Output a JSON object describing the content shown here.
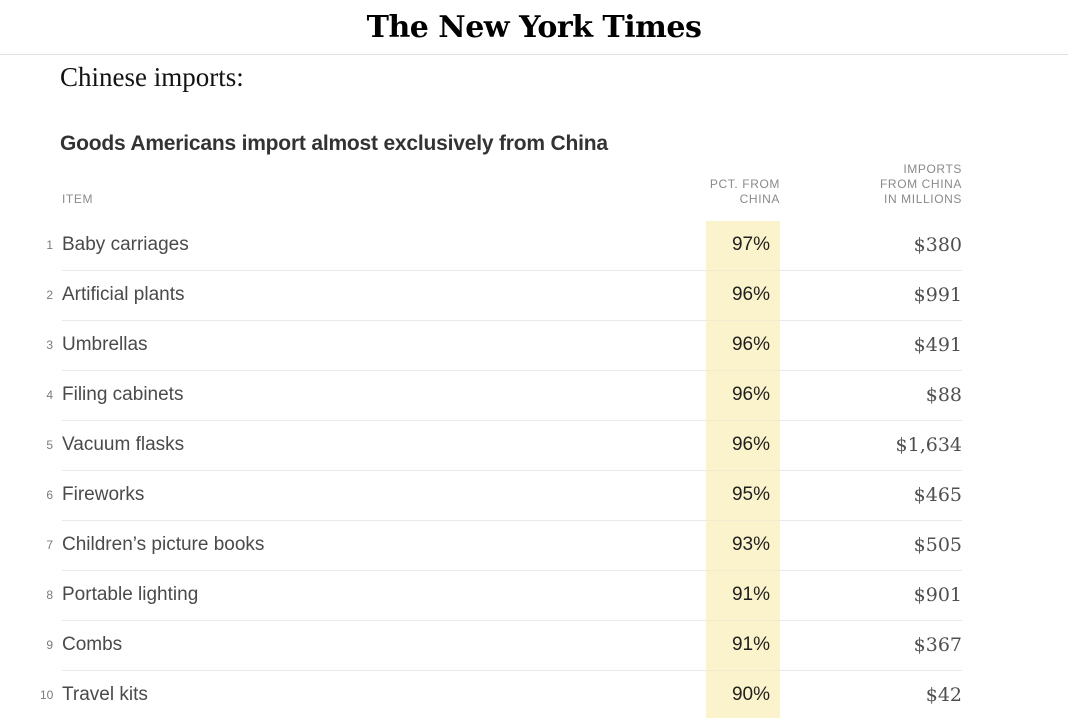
{
  "masthead": {
    "logo": "The New York Times"
  },
  "kicker": "Chinese imports:",
  "colors": {
    "highlight": "#fbf3cc",
    "row_border": "#e9e9e9",
    "masthead_border": "#e2e2e2"
  },
  "table": {
    "title": "Goods Americans import almost exclusively from China",
    "columns": {
      "item": "ITEM",
      "pct": "PCT. FROM\nCHINA",
      "value": "IMPORTS\nFROM CHINA\nIN MILLIONS"
    },
    "rows": [
      {
        "rank": "1",
        "item": "Baby carriages",
        "pct": "97%",
        "value": "$380"
      },
      {
        "rank": "2",
        "item": "Artificial plants",
        "pct": "96%",
        "value": "$991"
      },
      {
        "rank": "3",
        "item": "Umbrellas",
        "pct": "96%",
        "value": "$491"
      },
      {
        "rank": "4",
        "item": "Filing cabinets",
        "pct": "96%",
        "value": "$88"
      },
      {
        "rank": "5",
        "item": "Vacuum flasks",
        "pct": "96%",
        "value": "$1,634"
      },
      {
        "rank": "6",
        "item": "Fireworks",
        "pct": "95%",
        "value": "$465"
      },
      {
        "rank": "7",
        "item": "Children’s picture books",
        "pct": "93%",
        "value": "$505"
      },
      {
        "rank": "8",
        "item": "Portable lighting",
        "pct": "91%",
        "value": "$901"
      },
      {
        "rank": "9",
        "item": "Combs",
        "pct": "91%",
        "value": "$367"
      },
      {
        "rank": "10",
        "item": "Travel kits",
        "pct": "90%",
        "value": "$42"
      }
    ]
  }
}
